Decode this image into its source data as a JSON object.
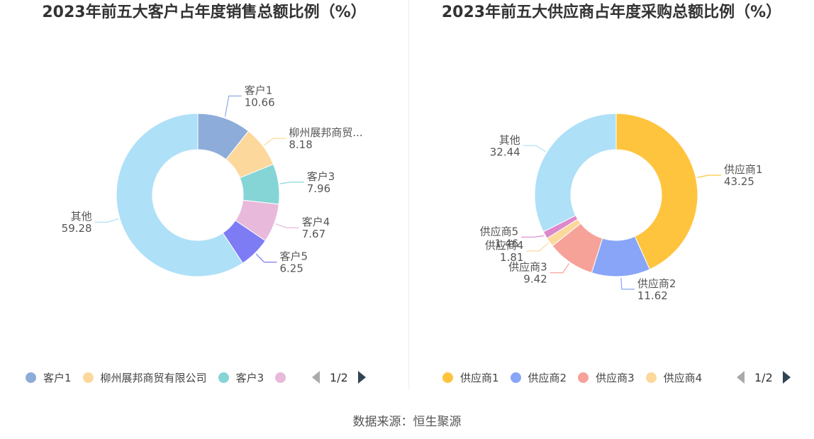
{
  "chart_data": [
    {
      "type": "pie",
      "variant": "donut",
      "title": "2023年前五大客户占年度销售总额比例（%）",
      "categories": [
        "客户1",
        "柳州展邦商贸有限公司",
        "客户3",
        "客户4",
        "客户5",
        "其他"
      ],
      "labels_shown": [
        "客户1",
        "柳州展邦商贸...",
        "客户3",
        "客户4",
        "客户5",
        "其他"
      ],
      "values": [
        10.66,
        8.18,
        7.96,
        7.67,
        6.25,
        59.28
      ],
      "value_labels": [
        "10.66",
        "8.18",
        "7.96",
        "7.67",
        "6.25",
        "59.28"
      ],
      "colors": [
        "#8eacd9",
        "#fdd89c",
        "#85d5d6",
        "#e8b9da",
        "#7e7cf5",
        "#aee0f8"
      ],
      "legend": {
        "position": "bottom",
        "visible_items": [
          "客户1",
          "柳州展邦商贸有限公司",
          "客户3",
          ""
        ],
        "page": "1/2"
      }
    },
    {
      "type": "pie",
      "variant": "donut",
      "title": "2023年前五大供应商占年度采购总额比例（%）",
      "categories": [
        "供应商1",
        "供应商2",
        "供应商3",
        "供应商4",
        "供应商5",
        "其他"
      ],
      "labels_shown": [
        "供应商1",
        "供应商2",
        "供应商3",
        "供应商4",
        "供应商5",
        "其他"
      ],
      "values": [
        43.25,
        11.62,
        9.42,
        1.81,
        1.46,
        32.44
      ],
      "value_labels": [
        "43.25",
        "11.62",
        "9.42",
        "1.81",
        "1.46",
        "32.44"
      ],
      "colors": [
        "#ffc43d",
        "#88a5f8",
        "#f7a299",
        "#fdd89c",
        "#dd88cc",
        "#aee0f8"
      ],
      "legend": {
        "position": "bottom",
        "visible_items": [
          "供应商1",
          "供应商2",
          "供应商3",
          "供应商4"
        ],
        "page": "1/2"
      }
    }
  ],
  "footer": {
    "source": "数据来源：恒生聚源"
  }
}
